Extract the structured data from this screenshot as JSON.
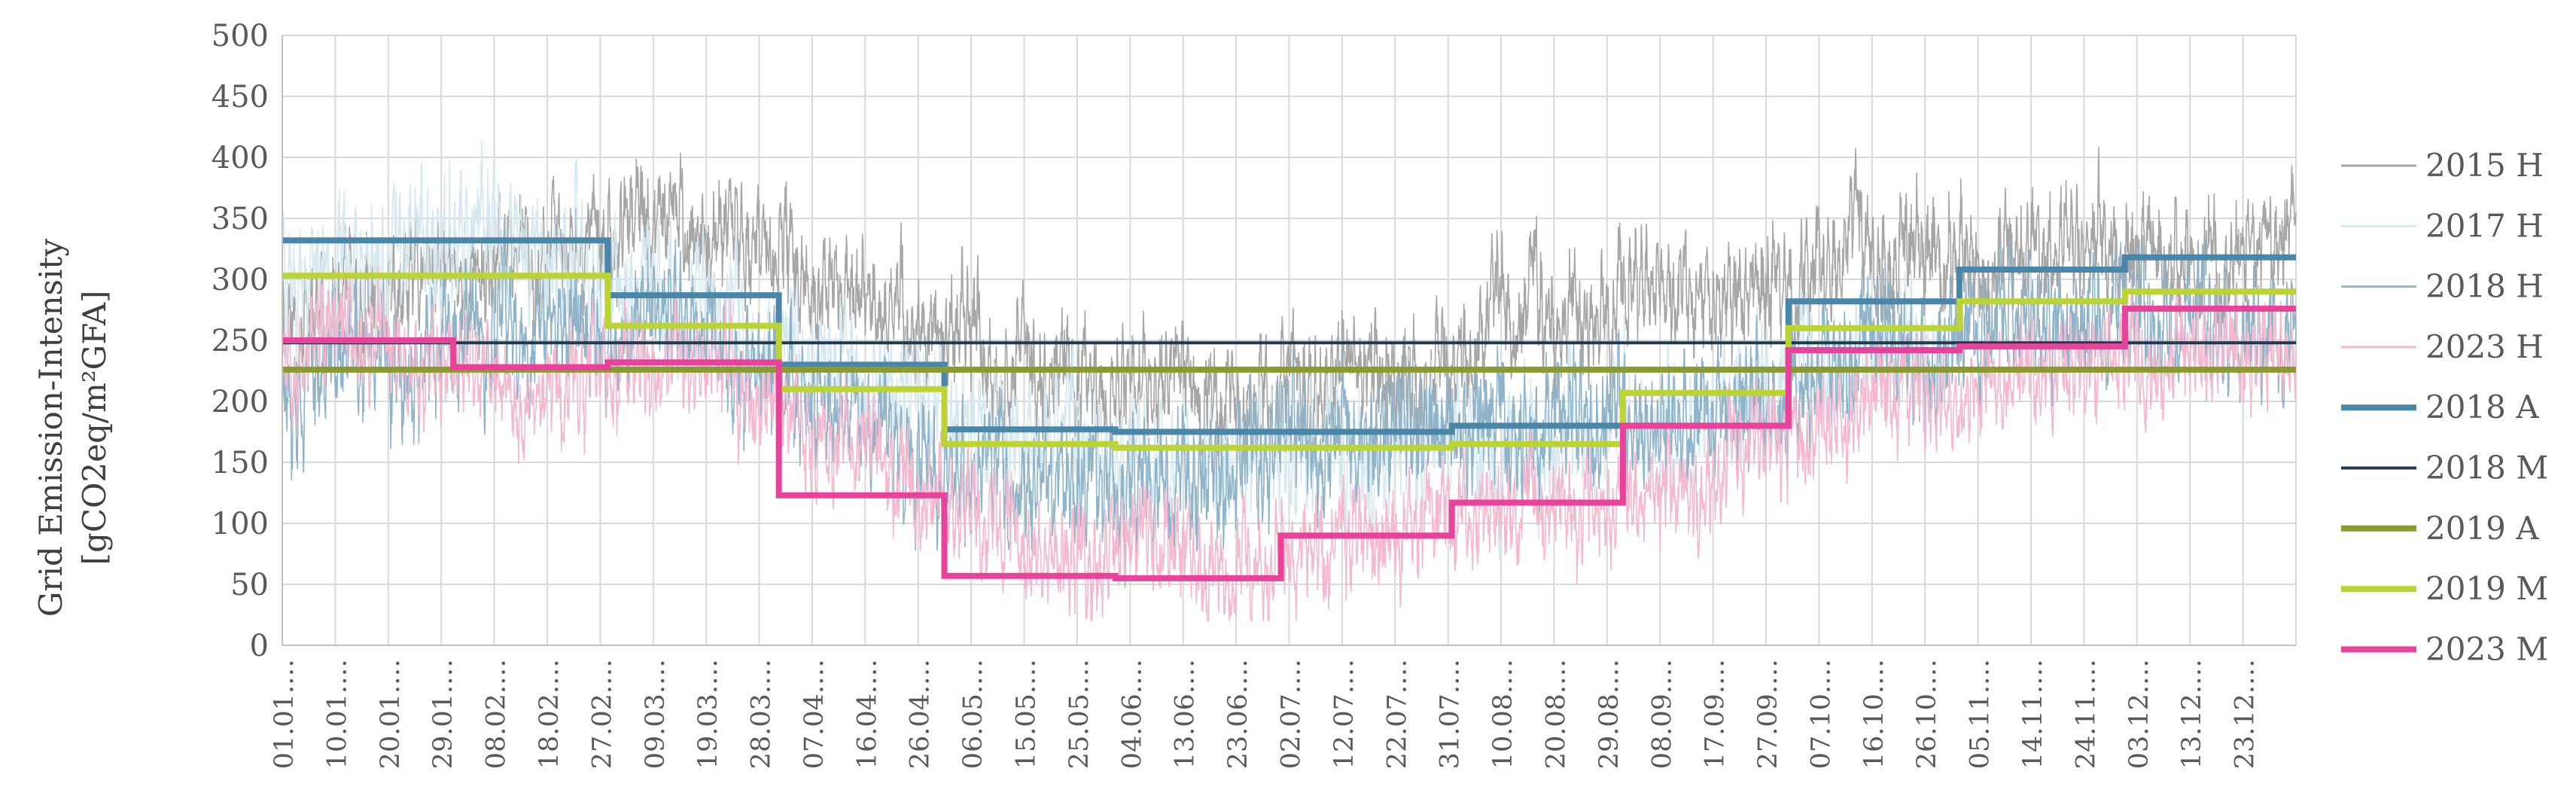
{
  "chart_data": {
    "type": "line",
    "title": "",
    "xlabel": "",
    "ylabel_lines": [
      "Grid Emission-Intensity",
      "[gCO2eq/m²GFA]"
    ],
    "ylim": [
      0,
      500
    ],
    "yticks": [
      0,
      50,
      100,
      150,
      200,
      250,
      300,
      350,
      400,
      450,
      500
    ],
    "x_days": 365,
    "xtick_labels": [
      "01.01.",
      "10.01.",
      "20.01.",
      "29.01.",
      "08.02.",
      "18.02.",
      "27.02.",
      "09.03.",
      "19.03.",
      "28.03.",
      "07.04.",
      "16.04.",
      "26.04.",
      "06.05.",
      "15.05.",
      "25.05.",
      "04.06.",
      "13.06.",
      "23.06.",
      "02.07.",
      "12.07.",
      "22.07.",
      "31.07.",
      "10.08.",
      "20.08.",
      "29.08.",
      "08.09.",
      "17.09.",
      "27.09.",
      "07.10.",
      "16.10.",
      "26.10.",
      "05.11.",
      "14.11.",
      "24.11.",
      "03.12.",
      "13.12.",
      "23.12."
    ],
    "xtick_suffix": "…",
    "grid": true,
    "legend_position": "right",
    "hourly_series": [
      {
        "name": "2015 H",
        "color": "#a6a6a6",
        "monthly_mean": [
          270,
          330,
          345,
          285,
          230,
          205,
          220,
          270,
          290,
          320,
          315,
          330
        ],
        "amplitude": 55,
        "seed": 11,
        "start_day": 0,
        "end_day": 365
      },
      {
        "name": "2017 H",
        "color": "#d6e9f0",
        "monthly_mean": [
          320,
          330,
          270,
          230,
          170,
          150,
          160,
          170,
          190,
          250,
          270,
          280
        ],
        "amplitude": 60,
        "seed": 23,
        "start_day": 0,
        "end_day": 300
      },
      {
        "name": "2018 H",
        "color": "#8fb4c9",
        "monthly_mean": [
          230,
          260,
          260,
          180,
          130,
          140,
          170,
          180,
          190,
          240,
          270,
          270
        ],
        "amplitude": 60,
        "seed": 37,
        "start_day": 0,
        "end_day": 365
      },
      {
        "name": "2023 H",
        "color": "#f4b8cf",
        "monthly_mean": [
          250,
          210,
          230,
          160,
          80,
          70,
          90,
          110,
          140,
          200,
          220,
          240
        ],
        "amplitude": 50,
        "seed": 53,
        "start_day": 0,
        "end_day": 365
      }
    ],
    "step_series": [
      {
        "name": "2018 A",
        "color": "#4a86a8",
        "width": 8,
        "values": [
          332,
          332,
          287,
          230,
          177,
          175,
          175,
          180,
          180,
          282,
          308,
          318
        ]
      },
      {
        "name": "2018 M",
        "color": "#1f3a4d",
        "width": 4,
        "values": [
          248,
          248,
          248,
          248,
          248,
          248,
          248,
          248,
          248,
          248,
          248,
          248
        ]
      },
      {
        "name": "2019 A",
        "color": "#8a9a2e",
        "width": 8,
        "values": [
          226,
          226,
          226,
          226,
          226,
          226,
          226,
          226,
          226,
          226,
          226,
          226
        ]
      },
      {
        "name": "2019 M",
        "color": "#bcd433",
        "width": 8,
        "values": [
          303,
          303,
          262,
          210,
          165,
          162,
          162,
          165,
          207,
          260,
          282,
          290
        ]
      },
      {
        "name": "2023 M",
        "color": "#e8429a",
        "width": 8,
        "values": [
          250,
          228,
          232,
          123,
          57,
          55,
          90,
          117,
          180,
          242,
          245,
          276
        ]
      }
    ]
  }
}
